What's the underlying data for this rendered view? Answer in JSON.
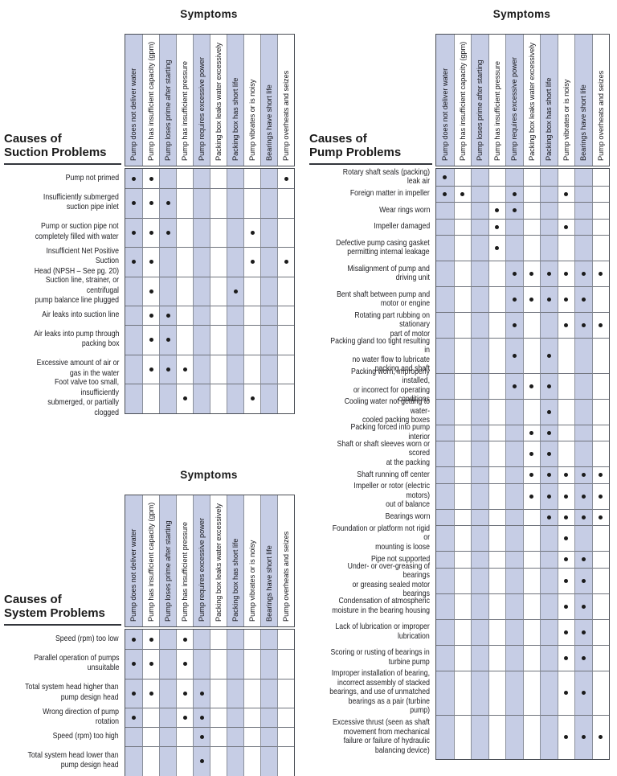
{
  "symptoms_header": "Symptoms",
  "symptom_columns": [
    "Pump does not deliver water",
    "Pump has insufficient capacity (gpm)",
    "Pump loses prime after starting",
    "Pump has insufficient pressure",
    "Pump requires excessive power",
    "Packing box leaks water excessively",
    "Packing box has short life",
    "Pump vibrates or is noisy",
    "Bearings have short life",
    "Pump overheats and seizes"
  ],
  "matrices": [
    {
      "id": "suction",
      "title": "Causes of\nSuction Problems",
      "rows": [
        {
          "label": "Pump not primed",
          "symptoms": [
            1,
            2,
            10
          ]
        },
        {
          "label": "Insufficiently submerged\nsuction pipe inlet",
          "symptoms": [
            1,
            2,
            3
          ]
        },
        {
          "label": "Pump or suction pipe not\ncompletely filled with water",
          "symptoms": [
            1,
            2,
            3,
            8
          ]
        },
        {
          "label": "Insufficient Net Positive Suction\nHead (NPSH – See pg. 20)",
          "symptoms": [
            1,
            2,
            8,
            10
          ]
        },
        {
          "label": "Suction line, strainer, or centrifugal\npump balance line plugged",
          "symptoms": [
            2,
            7
          ]
        },
        {
          "label": "Air leaks into suction line",
          "symptoms": [
            2,
            3
          ]
        },
        {
          "label": "Air leaks into pump through\npacking box",
          "symptoms": [
            2,
            3
          ]
        },
        {
          "label": "Excessive amount of air or\ngas in the water",
          "symptoms": [
            2,
            3,
            4
          ]
        },
        {
          "label": "Foot valve too small, insufficiently\nsubmerged, or partially clogged",
          "symptoms": [
            4,
            8
          ]
        }
      ]
    },
    {
      "id": "system",
      "title": "Causes of\nSystem Problems",
      "rows": [
        {
          "label": "Speed (rpm) too low",
          "symptoms": [
            1,
            2,
            4
          ]
        },
        {
          "label": "Parallel operation of pumps\nunsuitable",
          "symptoms": [
            1,
            2,
            4
          ]
        },
        {
          "label": "Total system head higher than\npump design head",
          "symptoms": [
            1,
            2,
            4,
            5
          ]
        },
        {
          "label": "Wrong direction of pump rotation",
          "symptoms": [
            1,
            4,
            5
          ]
        },
        {
          "label": "Speed (rpm) too high",
          "symptoms": [
            5
          ]
        },
        {
          "label": "Total system head lower than\npump design head",
          "symptoms": [
            5
          ]
        }
      ]
    },
    {
      "id": "pump",
      "title": "Causes of\nPump Problems",
      "rows": [
        {
          "label": "Rotary shaft seals (packing) leak air",
          "symptoms": [
            1
          ]
        },
        {
          "label": "Foreign matter in impeller",
          "symptoms": [
            1,
            2,
            5,
            8
          ]
        },
        {
          "label": "Wear rings worn",
          "symptoms": [
            4,
            5
          ]
        },
        {
          "label": "Impeller damaged",
          "symptoms": [
            4,
            8
          ]
        },
        {
          "label": "Defective pump casing gasket\npermitting internal leakage",
          "symptoms": [
            4
          ]
        },
        {
          "label": "Misalignment of pump and\ndriving unit",
          "symptoms": [
            5,
            6,
            7,
            8,
            9,
            10
          ]
        },
        {
          "label": "Bent shaft between pump and\nmotor or engine",
          "symptoms": [
            5,
            6,
            7,
            8,
            9
          ]
        },
        {
          "label": "Rotating part rubbing on stationary\npart of motor",
          "symptoms": [
            5,
            8,
            9,
            10
          ]
        },
        {
          "label": "Packing gland too tight resulting in\nno water flow to lubricate\npacking and shaft",
          "symptoms": [
            5,
            7
          ]
        },
        {
          "label": "Packing worn, improperly installed,\nor incorrect for operating conditions",
          "symptoms": [
            5,
            6,
            7
          ]
        },
        {
          "label": "Cooling water not getting to water-\ncooled packing boxes",
          "symptoms": [
            7
          ]
        },
        {
          "label": "Packing forced into pump interior",
          "symptoms": [
            6,
            7
          ]
        },
        {
          "label": "Shaft or shaft sleeves worn or scored\nat the packing",
          "symptoms": [
            6,
            7
          ]
        },
        {
          "label": "Shaft running off center",
          "symptoms": [
            6,
            7,
            8,
            9,
            10
          ]
        },
        {
          "label": "Impeller or rotor (electric motors)\nout of balance",
          "symptoms": [
            6,
            7,
            8,
            9,
            10
          ]
        },
        {
          "label": "Bearings worn",
          "symptoms": [
            7,
            8,
            9,
            10
          ]
        },
        {
          "label": "Foundation or platform not rigid or\nmounting is loose",
          "symptoms": [
            8
          ]
        },
        {
          "label": "Pipe not supported",
          "symptoms": [
            8,
            9
          ]
        },
        {
          "label": "Under- or over-greasing of bearings\nor greasing sealed motor bearings",
          "symptoms": [
            8,
            9
          ]
        },
        {
          "label": "Condensation of atmospheric\nmoisture in the bearing housing",
          "symptoms": [
            8,
            9
          ]
        },
        {
          "label": "Lack of lubrication or improper\nlubrication",
          "symptoms": [
            8,
            9
          ]
        },
        {
          "label": "Scoring or rusting of bearings in\nturbine pump",
          "symptoms": [
            8,
            9
          ]
        },
        {
          "label": "Improper installation of bearing,\nincorrect assembly of stacked\nbearings, and use of unmatched\nbearings as a pair (turbine pump)",
          "symptoms": [
            8,
            9
          ]
        },
        {
          "label": "Excessive thrust (seen as shaft\nmovement from mechanical\nfailure or failure of hydraulic\nbalancing device)",
          "symptoms": [
            8,
            9,
            10
          ]
        }
      ]
    }
  ],
  "colors": {
    "column_shade": "#c6cde5",
    "dot": "#1b1b1b",
    "outer_border": "#4a4e55",
    "vertical_line": "#8b909b",
    "horizontal_line": "#70747d",
    "text": "#232327"
  },
  "icons": {
    "dot-marker": "filled-circle"
  }
}
